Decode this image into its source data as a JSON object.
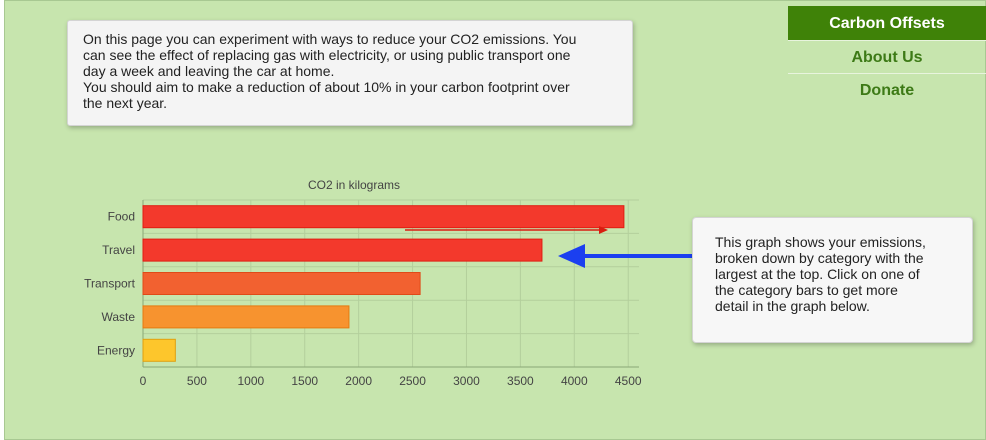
{
  "intro": {
    "text_lines": [
      "On this page you can experiment with ways to reduce your CO2 emissions. You",
      "can see the effect of replacing gas with electricity, or using public transport one",
      "day a week and leaving the car at home.",
      "You should aim to make a reduction of about 10% in your carbon footprint over",
      "the next year."
    ]
  },
  "nav": {
    "items": [
      {
        "label": "Carbon Offsets",
        "active": true
      },
      {
        "label": "About Us",
        "active": false
      },
      {
        "label": "Donate",
        "active": false
      }
    ]
  },
  "note": {
    "text_lines": [
      "This graph shows your emissions,",
      "broken down by category with the",
      "largest at the top. Click on one of",
      "the category bars to get more",
      "detail in the graph below."
    ],
    "arrow_color": "#1b3ff0"
  },
  "colors": {
    "background": "#c7e5ae",
    "nav_active": "#3f8208",
    "nav_text": "#3d7a16",
    "gridline": "#b3cf9c"
  },
  "chart_data": {
    "type": "bar",
    "orientation": "horizontal",
    "title": "CO2 in kilograms",
    "categories": [
      "Food",
      "Travel",
      "Transport",
      "Waste",
      "Energy"
    ],
    "values": [
      4460,
      3700,
      2570,
      1910,
      300
    ],
    "bar_colors": [
      "#f3392c",
      "#f3392c",
      "#f26130",
      "#f7932f",
      "#fdc62c"
    ],
    "bar_border_colors": [
      "#e01d12",
      "#e01d12",
      "#e04a18",
      "#e57a10",
      "#e0a010"
    ],
    "xlim": [
      0,
      4600
    ],
    "xticks": [
      0,
      500,
      1000,
      1500,
      2000,
      2500,
      3000,
      3500,
      4000,
      4500
    ],
    "grid": true
  }
}
